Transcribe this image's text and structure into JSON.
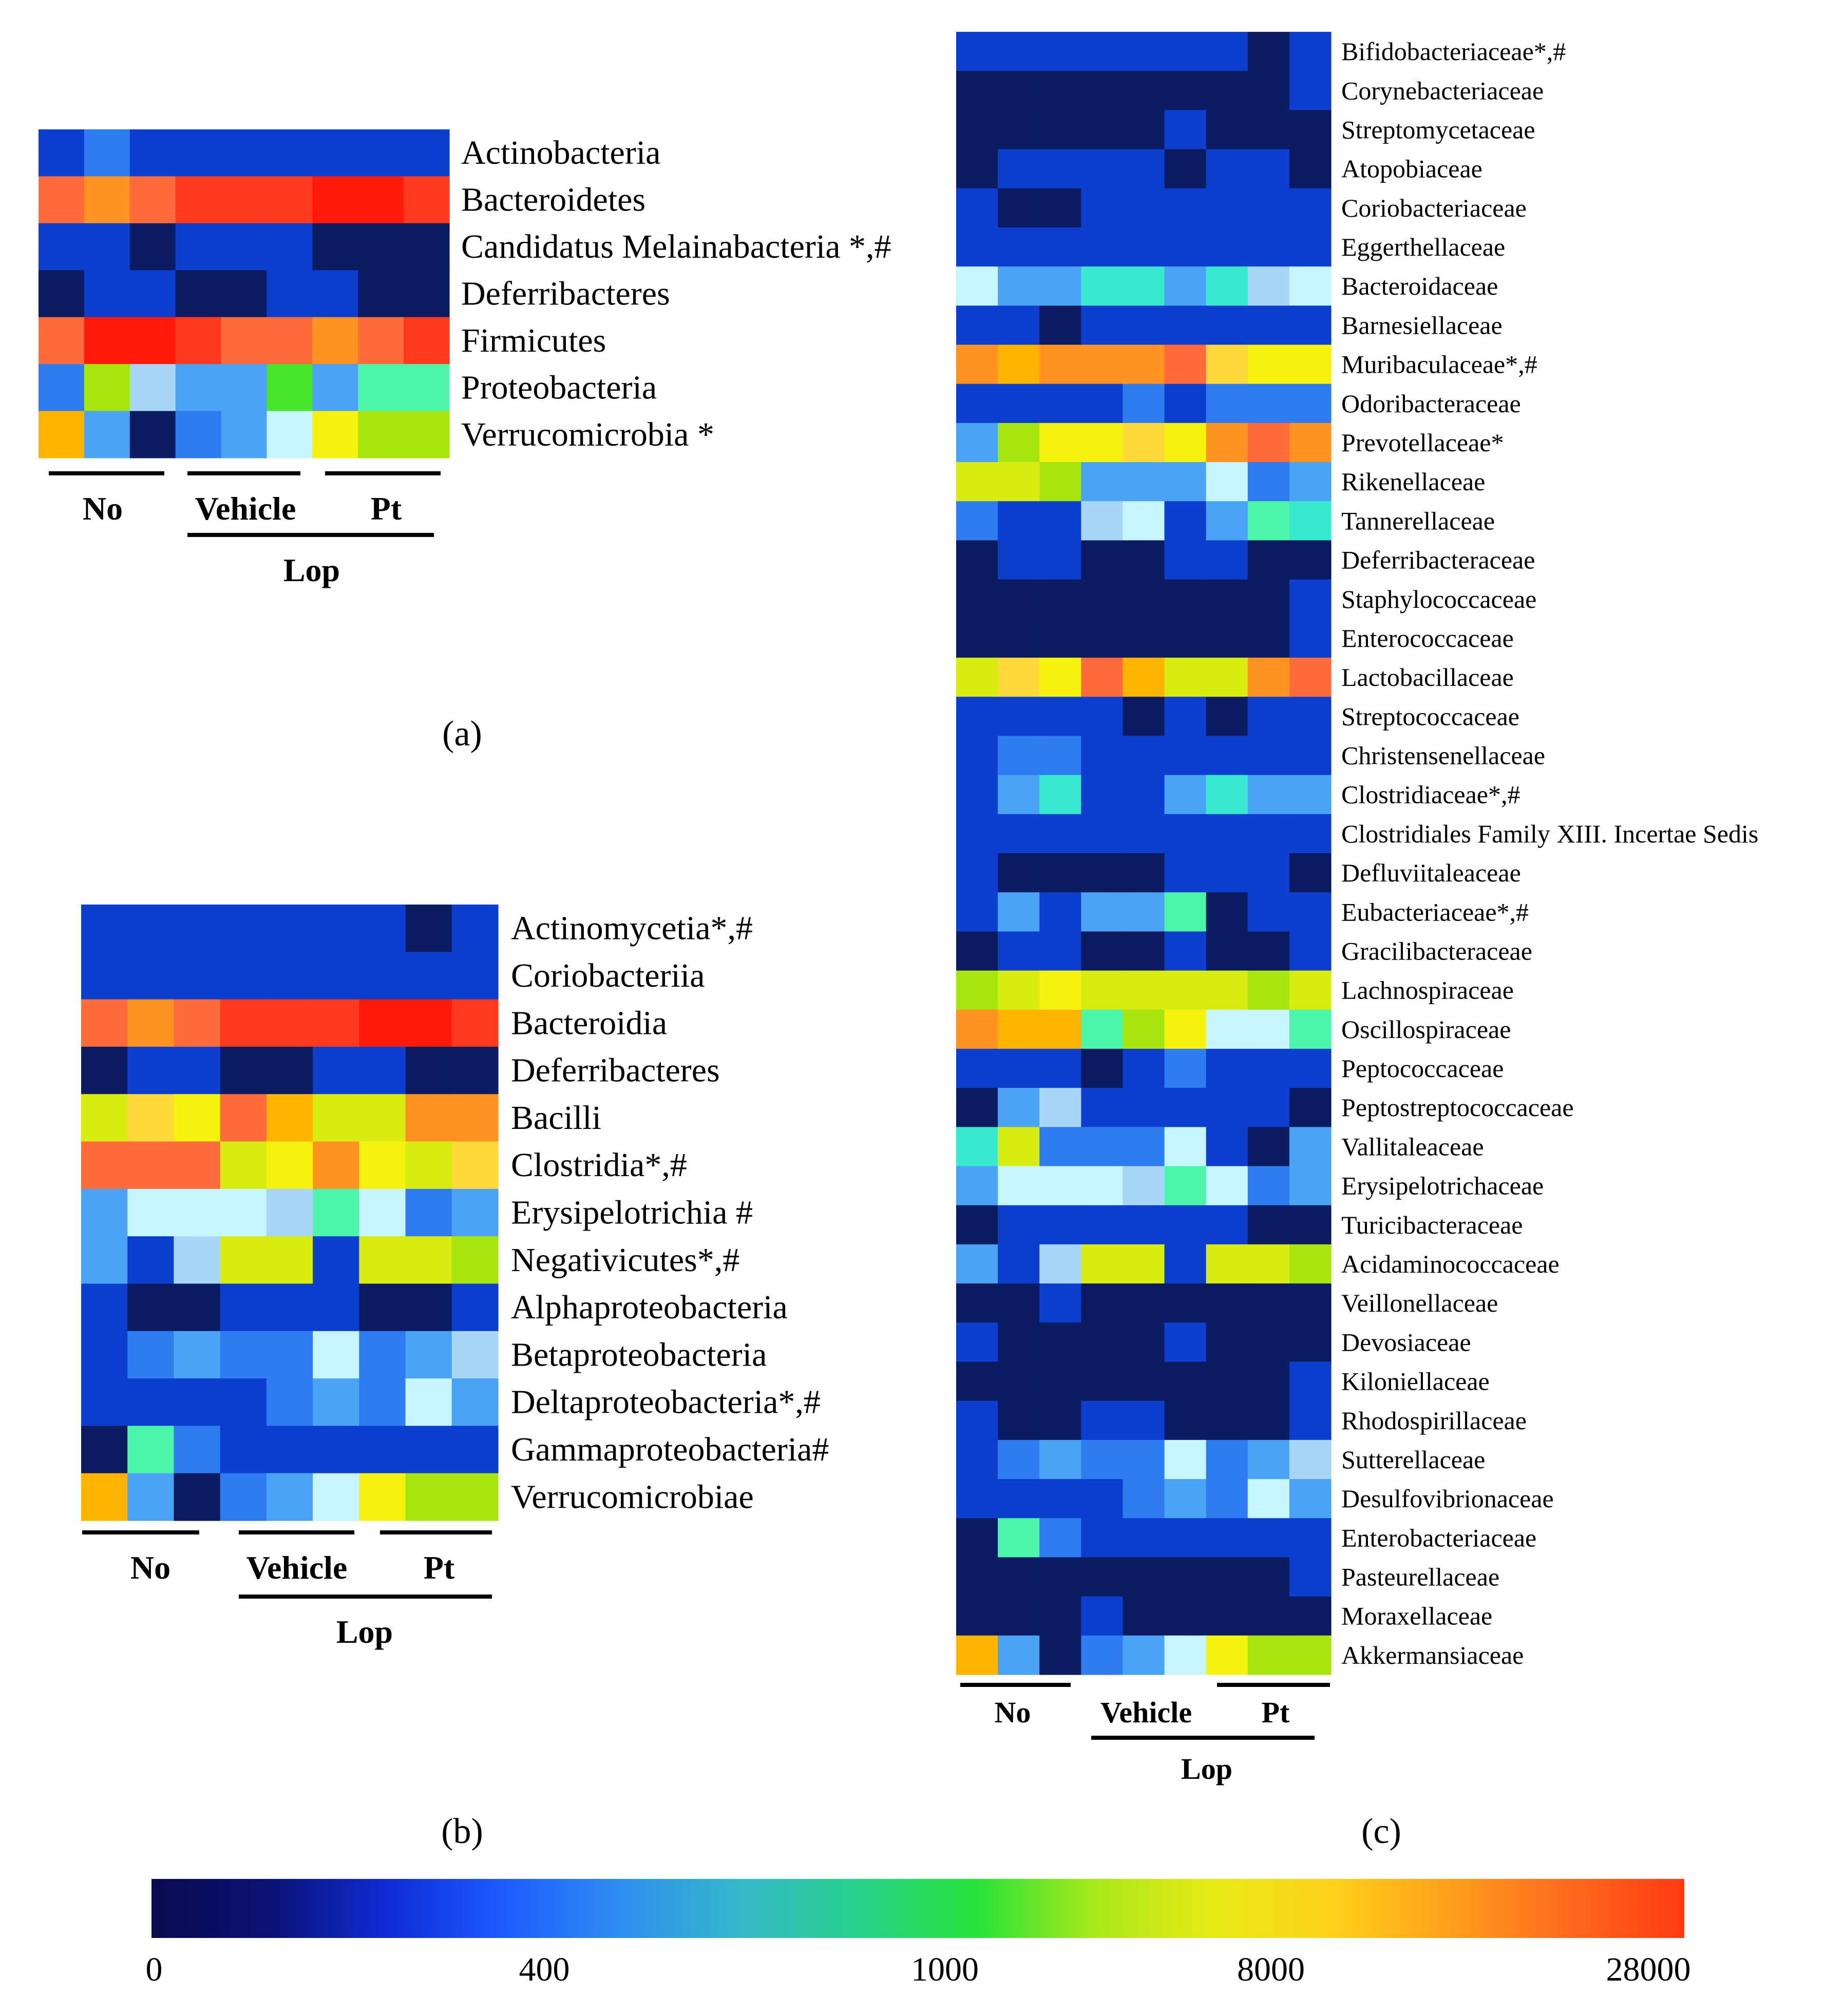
{
  "figure": {
    "panel_labels": [
      "(a)",
      "(b)",
      "(c)"
    ]
  },
  "groups": {
    "no": "No",
    "vehicle": "Vehicle",
    "pt": "Pt",
    "lop": "Lop"
  },
  "colorbar": {
    "ticks": [
      "0",
      "400",
      "1000",
      "8000",
      "28000"
    ],
    "stops": [
      "#0a0a4f",
      "#0b1273",
      "#0f2bd6",
      "#1e5cff",
      "#2f8ff0",
      "#35b8c9",
      "#28d18a",
      "#27e23a",
      "#a8e81a",
      "#e8ea14",
      "#ffd21a",
      "#ffa01a",
      "#ff6a1e",
      "#ff3a10"
    ]
  },
  "palette": {
    "0": "#0b1c62",
    "1": "#0d3fcf",
    "2": "#2e7bf2",
    "3": "#4aa3f4",
    "4": "#a8d6f8",
    "5": "#c6f4ff",
    "6": "#38e8cf",
    "7": "#4df5a8",
    "8": "#4ae62a",
    "9": "#a6e60d",
    "10": "#d8ec12",
    "11": "#f5f20e",
    "12": "#ffd83a",
    "13": "#ffb400",
    "14": "#ff9322",
    "15": "#ff6b3a",
    "16": "#ff3a1e",
    "17": "#ff1a0a"
  },
  "chart_data": [
    {
      "type": "heatmap",
      "panel": "(a)",
      "columns": [
        "No",
        "No",
        "No",
        "Vehicle",
        "Vehicle",
        "Vehicle",
        "Pt",
        "Pt",
        "Pt"
      ],
      "color_scale": [
        0,
        400,
        1000,
        8000,
        28000
      ],
      "rows": [
        {
          "label": "Actinobacteria",
          "levels": [
            1,
            2,
            1,
            1,
            1,
            1,
            1,
            1,
            1
          ]
        },
        {
          "label": "Bacteroidetes",
          "levels": [
            15,
            14,
            15,
            16,
            16,
            16,
            17,
            17,
            16
          ]
        },
        {
          "label": "Candidatus Melainabacteria *,#",
          "levels": [
            1,
            1,
            0,
            1,
            1,
            1,
            0,
            0,
            0
          ]
        },
        {
          "label": "Deferribacteres",
          "levels": [
            0,
            1,
            1,
            0,
            0,
            1,
            1,
            0,
            0
          ]
        },
        {
          "label": "Firmicutes",
          "levels": [
            15,
            17,
            17,
            16,
            15,
            15,
            14,
            15,
            16
          ]
        },
        {
          "label": "Proteobacteria",
          "levels": [
            2,
            9,
            4,
            3,
            3,
            8,
            3,
            7,
            7
          ]
        },
        {
          "label": "Verrucomicrobia *",
          "levels": [
            13,
            3,
            0,
            2,
            3,
            5,
            11,
            9,
            9
          ]
        }
      ]
    },
    {
      "type": "heatmap",
      "panel": "(b)",
      "columns": [
        "No",
        "No",
        "No",
        "Vehicle",
        "Vehicle",
        "Vehicle",
        "Pt",
        "Pt",
        "Pt"
      ],
      "color_scale": [
        0,
        400,
        1000,
        8000,
        28000
      ],
      "rows": [
        {
          "label": "Actinomycetia*,#",
          "levels": [
            1,
            1,
            1,
            1,
            1,
            1,
            1,
            0,
            1
          ]
        },
        {
          "label": "Coriobacteriia",
          "levels": [
            1,
            1,
            1,
            1,
            1,
            1,
            1,
            1,
            1
          ]
        },
        {
          "label": "Bacteroidia",
          "levels": [
            15,
            14,
            15,
            16,
            16,
            16,
            17,
            17,
            16
          ]
        },
        {
          "label": "Deferribacteres",
          "levels": [
            0,
            1,
            1,
            0,
            0,
            1,
            1,
            0,
            0
          ]
        },
        {
          "label": "Bacilli",
          "levels": [
            10,
            12,
            11,
            15,
            13,
            10,
            10,
            14,
            14
          ]
        },
        {
          "label": "Clostridia*,#",
          "levels": [
            15,
            15,
            15,
            10,
            11,
            14,
            11,
            10,
            12
          ]
        },
        {
          "label": "Erysipelotrichia  #",
          "levels": [
            3,
            5,
            5,
            5,
            4,
            7,
            5,
            2,
            3
          ]
        },
        {
          "label": "Negativicutes*,#",
          "levels": [
            3,
            1,
            4,
            10,
            10,
            1,
            10,
            10,
            9
          ]
        },
        {
          "label": "Alphaproteobacteria",
          "levels": [
            1,
            0,
            0,
            1,
            1,
            1,
            0,
            0,
            1
          ]
        },
        {
          "label": "Betaproteobacteria",
          "levels": [
            1,
            2,
            3,
            2,
            2,
            5,
            2,
            3,
            4
          ]
        },
        {
          "label": "Deltaproteobacteria*,#",
          "levels": [
            1,
            1,
            1,
            1,
            2,
            3,
            2,
            5,
            3
          ]
        },
        {
          "label": "Gammaproteobacteria#",
          "levels": [
            0,
            7,
            2,
            1,
            1,
            1,
            1,
            1,
            1
          ]
        },
        {
          "label": "Verrucomicrobiae",
          "levels": [
            13,
            3,
            0,
            2,
            3,
            5,
            11,
            9,
            9
          ]
        }
      ]
    },
    {
      "type": "heatmap",
      "panel": "(c)",
      "columns": [
        "No",
        "No",
        "No",
        "Vehicle",
        "Vehicle",
        "Vehicle",
        "Pt",
        "Pt",
        "Pt"
      ],
      "color_scale": [
        0,
        400,
        1000,
        8000,
        28000
      ],
      "rows": [
        {
          "label": "Bifidobacteriaceae*,#",
          "levels": [
            1,
            1,
            1,
            1,
            1,
            1,
            1,
            0,
            1
          ]
        },
        {
          "label": "Corynebacteriaceae",
          "levels": [
            0,
            0,
            0,
            0,
            0,
            0,
            0,
            0,
            1
          ]
        },
        {
          "label": "Streptomycetaceae",
          "levels": [
            0,
            0,
            0,
            0,
            0,
            1,
            0,
            0,
            0
          ]
        },
        {
          "label": "Atopobiaceae",
          "levels": [
            0,
            1,
            1,
            1,
            1,
            0,
            1,
            1,
            0
          ]
        },
        {
          "label": "Coriobacteriaceae",
          "levels": [
            1,
            0,
            0,
            1,
            1,
            1,
            1,
            1,
            1
          ]
        },
        {
          "label": "Eggerthellaceae",
          "levels": [
            1,
            1,
            1,
            1,
            1,
            1,
            1,
            1,
            1
          ]
        },
        {
          "label": "Bacteroidaceae",
          "levels": [
            5,
            3,
            3,
            6,
            6,
            3,
            6,
            4,
            5
          ]
        },
        {
          "label": "Barnesiellaceae",
          "levels": [
            1,
            1,
            0,
            1,
            1,
            1,
            1,
            1,
            1
          ]
        },
        {
          "label": "Muribaculaceae*,#",
          "levels": [
            14,
            13,
            14,
            14,
            14,
            15,
            12,
            11,
            11
          ]
        },
        {
          "label": "Odoribacteraceae",
          "levels": [
            1,
            1,
            1,
            1,
            2,
            1,
            2,
            2,
            2
          ]
        },
        {
          "label": "Prevotellaceae*",
          "levels": [
            3,
            9,
            11,
            11,
            12,
            11,
            14,
            15,
            14
          ]
        },
        {
          "label": "Rikenellaceae",
          "levels": [
            10,
            10,
            9,
            3,
            3,
            3,
            5,
            2,
            3
          ]
        },
        {
          "label": "Tannerellaceae",
          "levels": [
            2,
            1,
            1,
            4,
            5,
            1,
            3,
            7,
            6
          ]
        },
        {
          "label": "Deferribacteraceae",
          "levels": [
            0,
            1,
            1,
            0,
            0,
            1,
            1,
            0,
            0
          ]
        },
        {
          "label": "Staphylococcaceae",
          "levels": [
            0,
            0,
            0,
            0,
            0,
            0,
            0,
            0,
            1
          ]
        },
        {
          "label": "Enterococcaceae",
          "levels": [
            0,
            0,
            0,
            0,
            0,
            0,
            0,
            0,
            1
          ]
        },
        {
          "label": "Lactobacillaceae",
          "levels": [
            10,
            12,
            11,
            15,
            13,
            10,
            10,
            14,
            15
          ]
        },
        {
          "label": "Streptococcaceae",
          "levels": [
            1,
            1,
            1,
            1,
            0,
            1,
            0,
            1,
            1
          ]
        },
        {
          "label": "Christensenellaceae",
          "levels": [
            1,
            2,
            2,
            1,
            1,
            1,
            1,
            1,
            1
          ]
        },
        {
          "label": "Clostridiaceae*,#",
          "levels": [
            1,
            3,
            6,
            1,
            1,
            3,
            6,
            3,
            3
          ]
        },
        {
          "label": "Clostridiales Family XIII. Incertae Sedis",
          "levels": [
            1,
            1,
            1,
            1,
            1,
            1,
            1,
            1,
            1
          ]
        },
        {
          "label": "Defluviitaleaceae",
          "levels": [
            1,
            0,
            0,
            0,
            0,
            1,
            1,
            1,
            0
          ]
        },
        {
          "label": "Eubacteriaceae*,#",
          "levels": [
            1,
            3,
            1,
            3,
            3,
            7,
            0,
            1,
            1
          ]
        },
        {
          "label": "Gracilibacteraceae",
          "levels": [
            0,
            1,
            1,
            0,
            0,
            1,
            0,
            0,
            1
          ]
        },
        {
          "label": "Lachnospiraceae",
          "levels": [
            9,
            10,
            11,
            10,
            10,
            10,
            10,
            9,
            10
          ]
        },
        {
          "label": "Oscillospiraceae",
          "levels": [
            14,
            13,
            13,
            7,
            9,
            11,
            5,
            5,
            7
          ]
        },
        {
          "label": "Peptococcaceae",
          "levels": [
            1,
            1,
            1,
            0,
            1,
            2,
            1,
            1,
            1
          ]
        },
        {
          "label": "Peptostreptococcaceae",
          "levels": [
            0,
            3,
            4,
            1,
            1,
            1,
            1,
            1,
            0
          ]
        },
        {
          "label": "Vallitaleaceae",
          "levels": [
            6,
            10,
            2,
            2,
            2,
            5,
            1,
            0,
            3
          ]
        },
        {
          "label": "Erysipelotrichaceae",
          "levels": [
            3,
            5,
            5,
            5,
            4,
            7,
            5,
            2,
            3
          ]
        },
        {
          "label": "Turicibacteraceae",
          "levels": [
            0,
            1,
            1,
            1,
            1,
            1,
            1,
            0,
            0
          ]
        },
        {
          "label": "Acidaminococcaceae",
          "levels": [
            3,
            1,
            4,
            10,
            10,
            1,
            10,
            10,
            9
          ]
        },
        {
          "label": "Veillonellaceae",
          "levels": [
            0,
            0,
            1,
            0,
            0,
            0,
            0,
            0,
            0
          ]
        },
        {
          "label": "Devosiaceae",
          "levels": [
            1,
            0,
            0,
            0,
            0,
            1,
            0,
            0,
            0
          ]
        },
        {
          "label": "Kiloniellaceae",
          "levels": [
            0,
            0,
            0,
            0,
            0,
            0,
            0,
            0,
            1
          ]
        },
        {
          "label": "Rhodospirillaceae",
          "levels": [
            1,
            0,
            0,
            1,
            1,
            0,
            0,
            0,
            1
          ]
        },
        {
          "label": "Sutterellaceae",
          "levels": [
            1,
            2,
            3,
            2,
            2,
            5,
            2,
            3,
            4
          ]
        },
        {
          "label": "Desulfovibrionaceae",
          "levels": [
            1,
            1,
            1,
            1,
            2,
            3,
            2,
            5,
            3
          ]
        },
        {
          "label": "Enterobacteriaceae",
          "levels": [
            0,
            7,
            2,
            1,
            1,
            1,
            1,
            1,
            1
          ]
        },
        {
          "label": "Pasteurellaceae",
          "levels": [
            0,
            0,
            0,
            0,
            0,
            0,
            0,
            0,
            1
          ]
        },
        {
          "label": "Moraxellaceae",
          "levels": [
            0,
            0,
            0,
            1,
            0,
            0,
            0,
            0,
            0
          ]
        },
        {
          "label": "Akkermansiaceae",
          "levels": [
            13,
            3,
            0,
            2,
            3,
            5,
            11,
            9,
            9
          ]
        }
      ]
    }
  ]
}
